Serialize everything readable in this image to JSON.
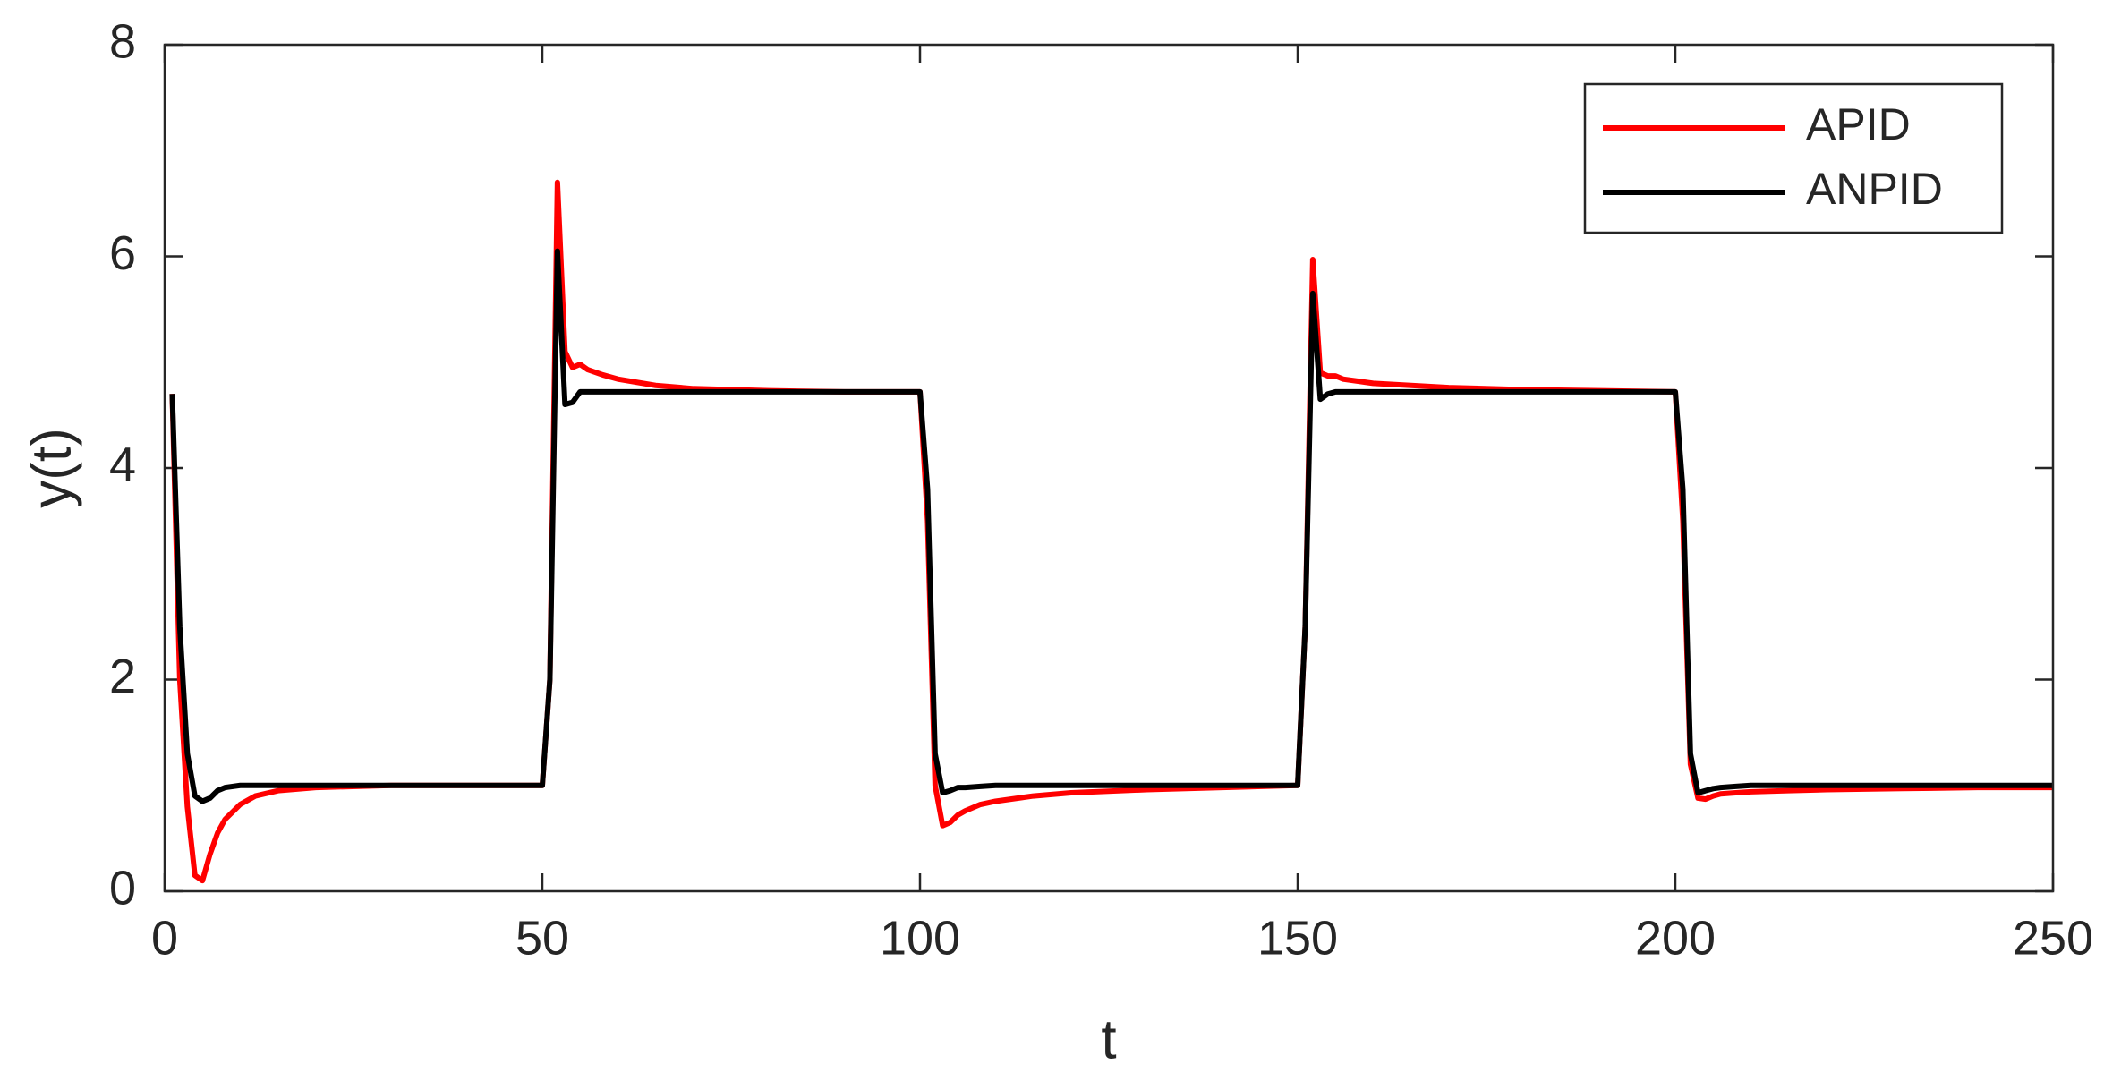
{
  "chart_data": {
    "type": "line",
    "x_label": "t",
    "y_label": "y(t)",
    "x": [
      1,
      2,
      3,
      4,
      5,
      6,
      7,
      8,
      10,
      12,
      15,
      20,
      30,
      40,
      50,
      51,
      52,
      53,
      54,
      55,
      56,
      58,
      60,
      65,
      70,
      80,
      90,
      100,
      101,
      102,
      103,
      104,
      105,
      106,
      108,
      110,
      115,
      120,
      130,
      140,
      150,
      151,
      152,
      153,
      154,
      155,
      156,
      158,
      160,
      165,
      170,
      180,
      190,
      200,
      201,
      202,
      203,
      204,
      205,
      206,
      208,
      210,
      215,
      220,
      230,
      240,
      250
    ],
    "series": [
      {
        "name": "APID",
        "color": "#ff0000",
        "values": [
          4.7,
          2.0,
          0.8,
          0.15,
          0.1,
          0.35,
          0.55,
          0.68,
          0.82,
          0.9,
          0.95,
          0.98,
          1.0,
          1.0,
          1.0,
          2.0,
          6.7,
          5.1,
          4.95,
          4.98,
          4.93,
          4.88,
          4.84,
          4.78,
          4.75,
          4.73,
          4.72,
          4.72,
          3.5,
          1.0,
          0.62,
          0.65,
          0.72,
          0.76,
          0.82,
          0.85,
          0.9,
          0.93,
          0.96,
          0.98,
          1.0,
          2.5,
          5.97,
          4.9,
          4.87,
          4.87,
          4.84,
          4.82,
          4.8,
          4.78,
          4.76,
          4.74,
          4.73,
          4.72,
          3.5,
          1.2,
          0.88,
          0.87,
          0.9,
          0.92,
          0.93,
          0.94,
          0.95,
          0.96,
          0.97,
          0.98,
          0.98
        ]
      },
      {
        "name": "ANPID",
        "color": "#000000",
        "values": [
          4.7,
          2.5,
          1.3,
          0.9,
          0.85,
          0.88,
          0.95,
          0.98,
          1.0,
          1.0,
          1.0,
          1.0,
          1.0,
          1.0,
          1.0,
          2.0,
          6.05,
          4.6,
          4.62,
          4.72,
          4.72,
          4.72,
          4.72,
          4.72,
          4.72,
          4.72,
          4.72,
          4.72,
          3.8,
          1.3,
          0.93,
          0.95,
          0.98,
          0.98,
          0.99,
          1.0,
          1.0,
          1.0,
          1.0,
          1.0,
          1.0,
          2.5,
          5.65,
          4.65,
          4.7,
          4.72,
          4.72,
          4.72,
          4.72,
          4.72,
          4.72,
          4.72,
          4.72,
          4.72,
          3.8,
          1.3,
          0.93,
          0.95,
          0.97,
          0.98,
          0.99,
          1.0,
          1.0,
          1.0,
          1.0,
          1.0,
          1.0
        ]
      }
    ],
    "xlim": [
      0,
      250
    ],
    "xticks": [
      0,
      50,
      100,
      150,
      200,
      250
    ],
    "ylim": [
      0,
      8
    ],
    "yticks": [
      0,
      2,
      4,
      6,
      8
    ],
    "grid": false,
    "legend": "upper right"
  }
}
